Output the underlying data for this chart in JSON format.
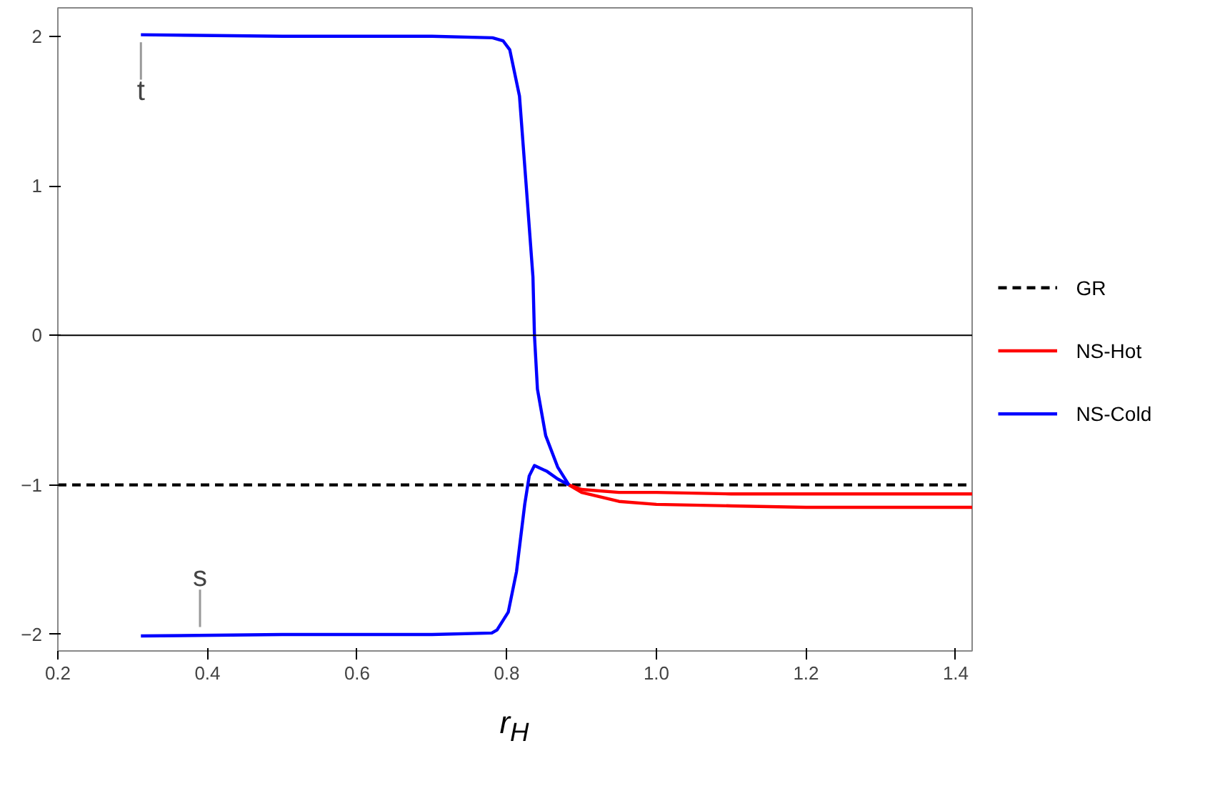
{
  "chart_data": {
    "type": "line",
    "xlabel": "r$_{H}$",
    "xlim": [
      0.2,
      1.422
    ],
    "ylim": [
      -2.11,
      2.19
    ],
    "xticks": [
      {
        "value": 0.2,
        "label": "0.2"
      },
      {
        "value": 0.4,
        "label": "0.4"
      },
      {
        "value": 0.6,
        "label": "0.6"
      },
      {
        "value": 0.8,
        "label": "0.8"
      },
      {
        "value": 1.0,
        "label": "1.0"
      },
      {
        "value": 1.2,
        "label": "1.2"
      },
      {
        "value": 1.4,
        "label": "1.4"
      }
    ],
    "yticks": [
      -2,
      -1,
      0,
      1,
      2
    ],
    "grid": false,
    "legend": "right",
    "ref_lines": [
      {
        "axis": "y",
        "value": 0,
        "color": "#000000"
      }
    ],
    "annotations": [
      {
        "text": "t",
        "x": 0.311,
        "y": 2.01
      },
      {
        "text": "s",
        "x": 0.39,
        "y": -2.0
      }
    ],
    "series": [
      {
        "name": "GR",
        "color": "#000000",
        "line_style": "dashed",
        "x": [
          0.2,
          1.422
        ],
        "values": [
          -1,
          -1
        ]
      },
      {
        "name": "NS-Hot",
        "color": "#ff0000",
        "x": [
          0.883,
          0.9,
          0.95,
          1.0,
          1.1,
          1.2,
          1.422
        ],
        "values": [
          -1.0,
          -1.03,
          -1.05,
          -1.05,
          -1.06,
          -1.06,
          -1.06
        ]
      },
      {
        "color": "#ff0000",
        "x": [
          0.883,
          0.9,
          0.95,
          1.0,
          1.1,
          1.2,
          1.422
        ],
        "values": [
          -1.0,
          -1.05,
          -1.11,
          -1.13,
          -1.14,
          -1.15,
          -1.15
        ]
      },
      {
        "name": "NS-Cold",
        "color": "#0000ff",
        "x": [
          0.311,
          0.5,
          0.7,
          0.781,
          0.795,
          0.804,
          0.817,
          0.826,
          0.835,
          0.837,
          0.841,
          0.852,
          0.868,
          0.883
        ],
        "values": [
          2.01,
          2.0,
          2.0,
          1.99,
          1.97,
          1.91,
          1.6,
          1.0,
          0.39,
          0.0,
          -0.36,
          -0.67,
          -0.88,
          -1.0
        ]
      },
      {
        "color": "#0000ff",
        "x": [
          0.311,
          0.5,
          0.7,
          0.78,
          0.787,
          0.802,
          0.813,
          0.824,
          0.83,
          0.837,
          0.854,
          0.868,
          0.883
        ],
        "values": [
          -2.01,
          -2.0,
          -2.0,
          -1.99,
          -1.97,
          -1.85,
          -1.58,
          -1.13,
          -0.94,
          -0.87,
          -0.91,
          -0.96,
          -1.0
        ]
      }
    ]
  }
}
